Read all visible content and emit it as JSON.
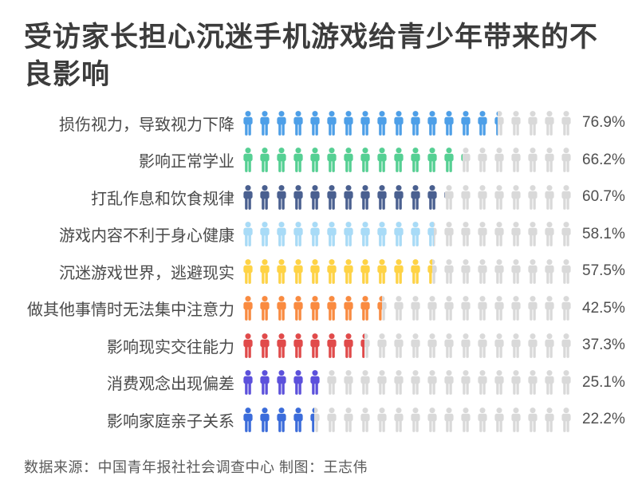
{
  "chart_data": {
    "type": "pictogram-bar",
    "title": "受访家长担心沉迷手机游戏给青少年带来的不良影响",
    "categories": [
      "损伤视力，导致视力下降",
      "影响正常学业",
      "打乱作息和饮食规律",
      "游戏内容不利于身心健康",
      "沉迷游戏世界，逃避现实",
      "做其他事情时无法集中注意力",
      "影响现实交往能力",
      "消费观念出现偏差",
      "影响家庭亲子关系"
    ],
    "values": [
      76.9,
      66.2,
      60.7,
      58.1,
      57.5,
      42.5,
      37.3,
      25.1,
      22.2
    ],
    "value_labels": [
      "76.9%",
      "66.2%",
      "60.7%",
      "58.1%",
      "57.5%",
      "42.5%",
      "37.3%",
      "25.1%",
      "22.2%"
    ],
    "series_colors": [
      "#4d9fe8",
      "#55d093",
      "#4a6090",
      "#a8dbf7",
      "#ffd344",
      "#fa8b40",
      "#e14a4a",
      "#5c51dc",
      "#3b6cdb"
    ],
    "empty_icon_color": "#d9d9d9",
    "total_icons_per_row": 20,
    "icon": "person-icon",
    "legend": "none",
    "xlim": [
      0,
      100
    ],
    "unit": "%"
  },
  "source_note": "数据来源：中国青年报社社会调查中心 制图：王志伟"
}
